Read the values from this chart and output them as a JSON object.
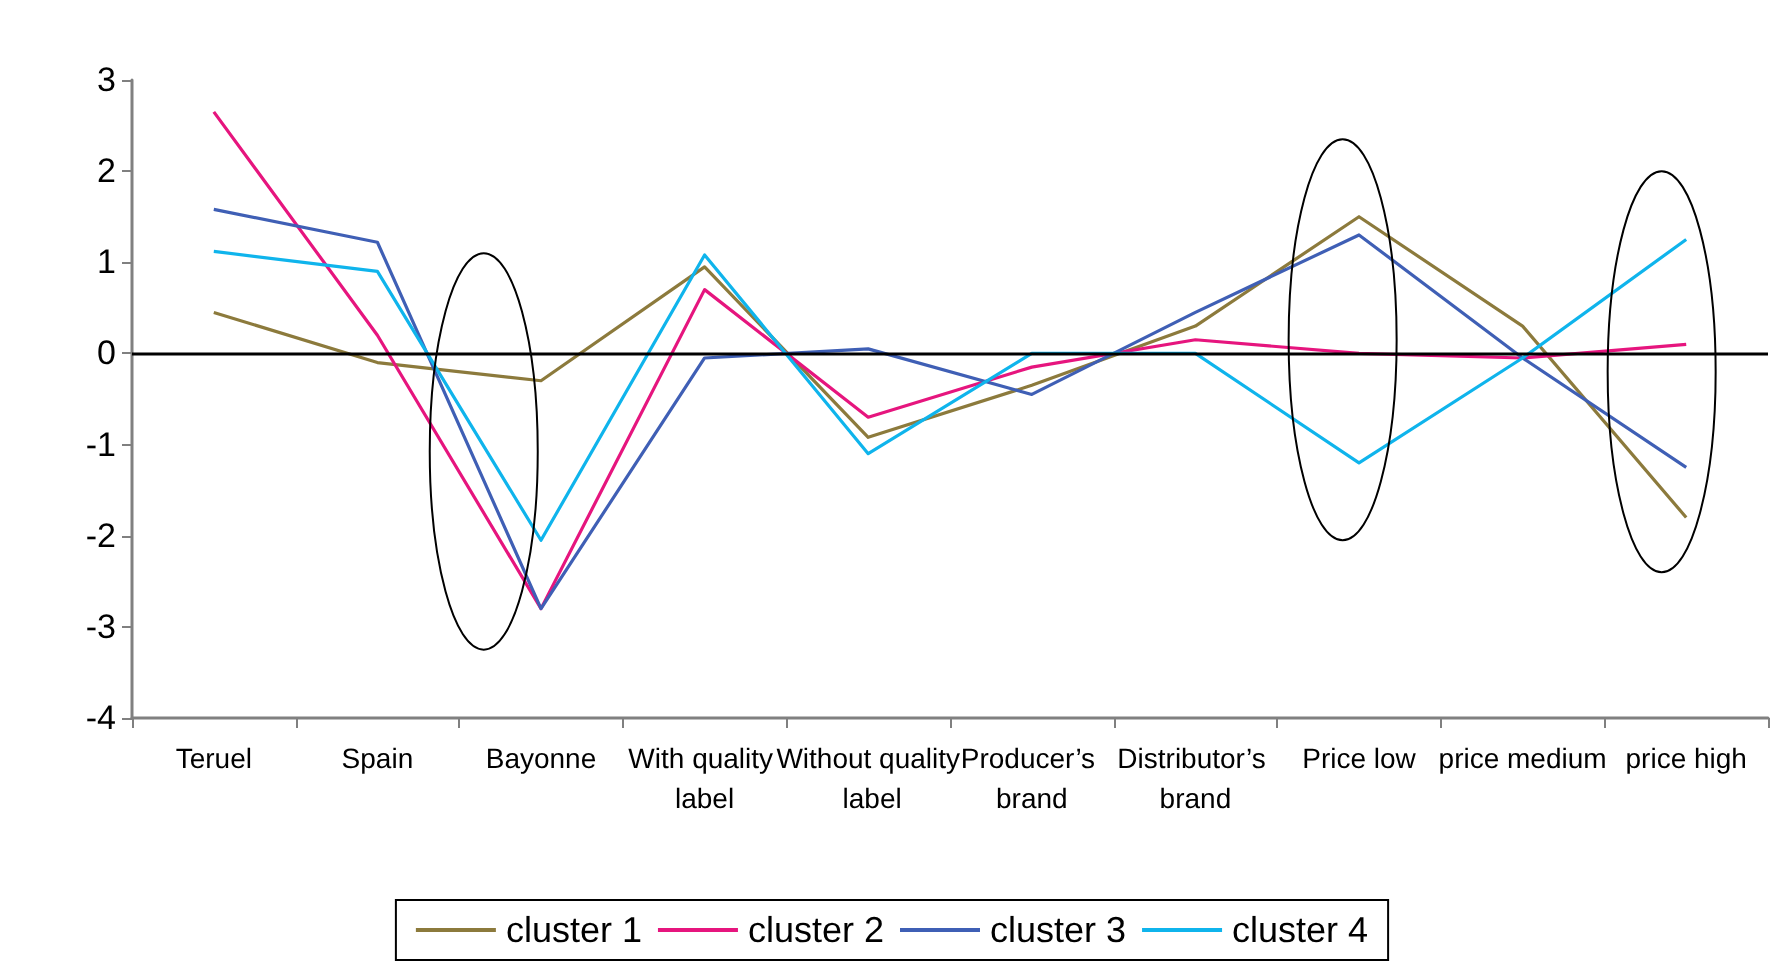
{
  "chart_data": {
    "type": "line",
    "categories": [
      "Teruel",
      "Spain",
      "Bayonne",
      "With quality label",
      "Without quality label",
      "Producer’s brand",
      "Distributor’s brand",
      "Price low",
      "price medium",
      "price high"
    ],
    "series": [
      {
        "name": "cluster 1",
        "color": "#8c7a3c",
        "values": [
          0.45,
          -0.1,
          -0.3,
          0.95,
          -0.92,
          -0.35,
          0.3,
          1.5,
          0.3,
          -1.8
        ]
      },
      {
        "name": "cluster 2",
        "color": "#e6157e",
        "values": [
          2.65,
          0.2,
          -2.8,
          0.7,
          -0.7,
          -0.15,
          0.15,
          0.0,
          -0.05,
          0.1
        ]
      },
      {
        "name": "cluster 3",
        "color": "#3f5fb5",
        "values": [
          1.58,
          1.22,
          -2.8,
          -0.05,
          0.05,
          -0.45,
          0.45,
          1.3,
          -0.05,
          -1.25
        ]
      },
      {
        "name": "cluster 4",
        "color": "#0fb4ec",
        "values": [
          1.12,
          0.9,
          -2.05,
          1.08,
          -1.1,
          0.0,
          0.0,
          -1.2,
          -0.05,
          1.25
        ]
      }
    ],
    "ylim": [
      -4,
      3
    ],
    "yticks": [
      -4,
      -3,
      -2,
      -1,
      0,
      1,
      2,
      3
    ],
    "ref_lines": [
      {
        "axis": "y",
        "value": 0,
        "color": "#000000"
      }
    ],
    "grid": false,
    "legend": "bottom",
    "marker": "none",
    "line_style": "solid"
  }
}
